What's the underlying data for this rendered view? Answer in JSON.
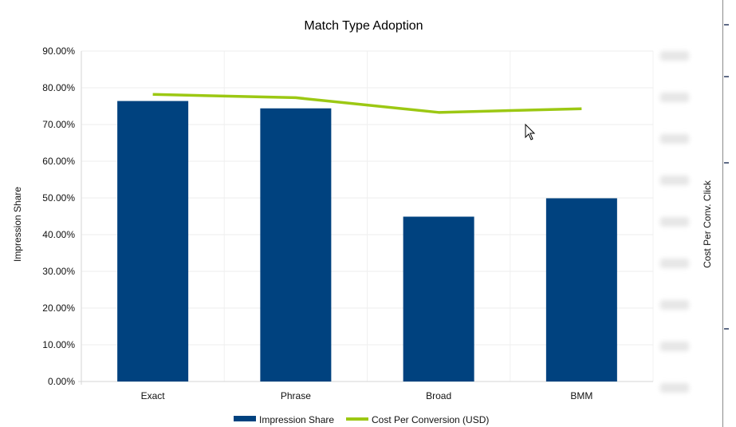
{
  "chart_data": {
    "type": "bar",
    "title": "Match Type Adoption",
    "categories": [
      "Exact",
      "Phrase",
      "Broad",
      "BMM"
    ],
    "ylabel": "Impression Share",
    "y2label": "Cost Per Conv. Click",
    "ylim": [
      0,
      0.9
    ],
    "yticks": [
      "0.00%",
      "10.00%",
      "20.00%",
      "30.00%",
      "40.00%",
      "50.00%",
      "60.00%",
      "70.00%",
      "80.00%",
      "90.00%"
    ],
    "grid": true,
    "legend_position": "bottom",
    "series": [
      {
        "name": "Impression Share",
        "type": "bar",
        "axis": "left",
        "color": "#00427f",
        "values": [
          0.764,
          0.744,
          0.449,
          0.499
        ]
      },
      {
        "name": "Cost Per Conversion (USD)",
        "type": "line",
        "axis": "right",
        "color": "#9cc813",
        "values": [
          0.782,
          0.773,
          0.733,
          0.743
        ]
      }
    ],
    "y2_tick_count": 9
  }
}
